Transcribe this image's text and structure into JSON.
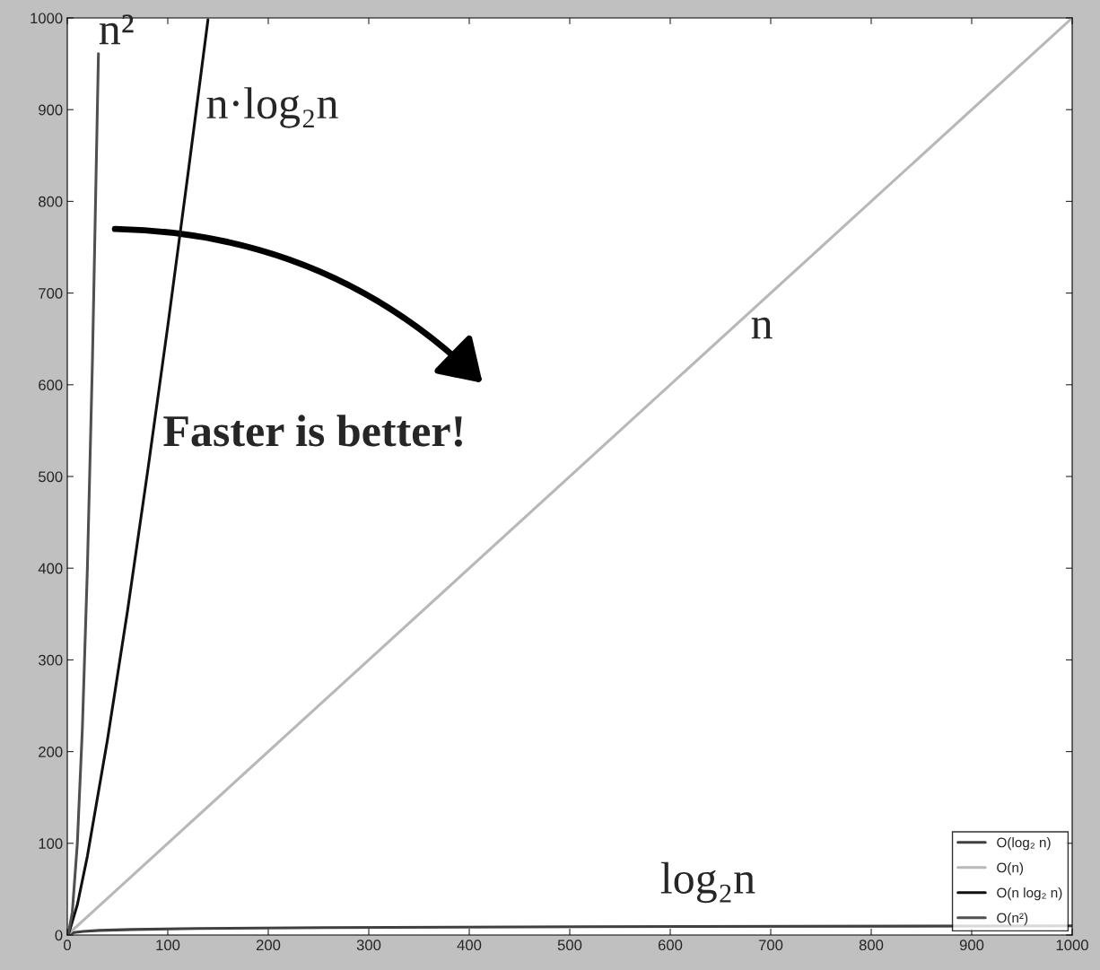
{
  "chart_data": {
    "type": "line",
    "xlim": [
      0,
      1000
    ],
    "ylim": [
      0,
      1000
    ],
    "xticks": [
      0,
      100,
      200,
      300,
      400,
      500,
      600,
      700,
      800,
      900,
      1000
    ],
    "yticks": [
      0,
      100,
      200,
      300,
      400,
      500,
      600,
      700,
      800,
      900,
      1000
    ],
    "grid": false,
    "legend": "bottom right",
    "marker": "none",
    "line_style": "solid",
    "series": [
      {
        "name": "O(log₂ n)",
        "color": "#404040",
        "x": [
          1,
          2,
          4,
          8,
          16,
          32,
          64,
          128,
          256,
          512,
          1000
        ],
        "values": [
          0,
          1,
          2,
          3,
          4,
          5,
          6,
          7,
          8,
          9,
          10
        ]
      },
      {
        "name": "O(n)",
        "color": "#b8b8b8",
        "x": [
          1,
          1000
        ],
        "values": [
          1,
          1000
        ]
      },
      {
        "name": "O(n log₂ n)",
        "color": "#101010",
        "x": [
          1,
          10,
          20,
          40,
          60,
          80,
          100,
          120,
          140
        ],
        "values": [
          0,
          33,
          86,
          213,
          354,
          506,
          664,
          829,
          998
        ]
      },
      {
        "name": "O(n²)",
        "color": "#505050",
        "x": [
          1,
          5,
          10,
          15,
          20,
          25,
          31
        ],
        "values": [
          1,
          25,
          100,
          225,
          400,
          625,
          961
        ]
      }
    ],
    "annotations": [
      {
        "text": "n²",
        "x": 31,
        "y": 961
      },
      "n·log₂n",
      "n",
      "log₂n",
      "Faster is better!"
    ]
  }
}
